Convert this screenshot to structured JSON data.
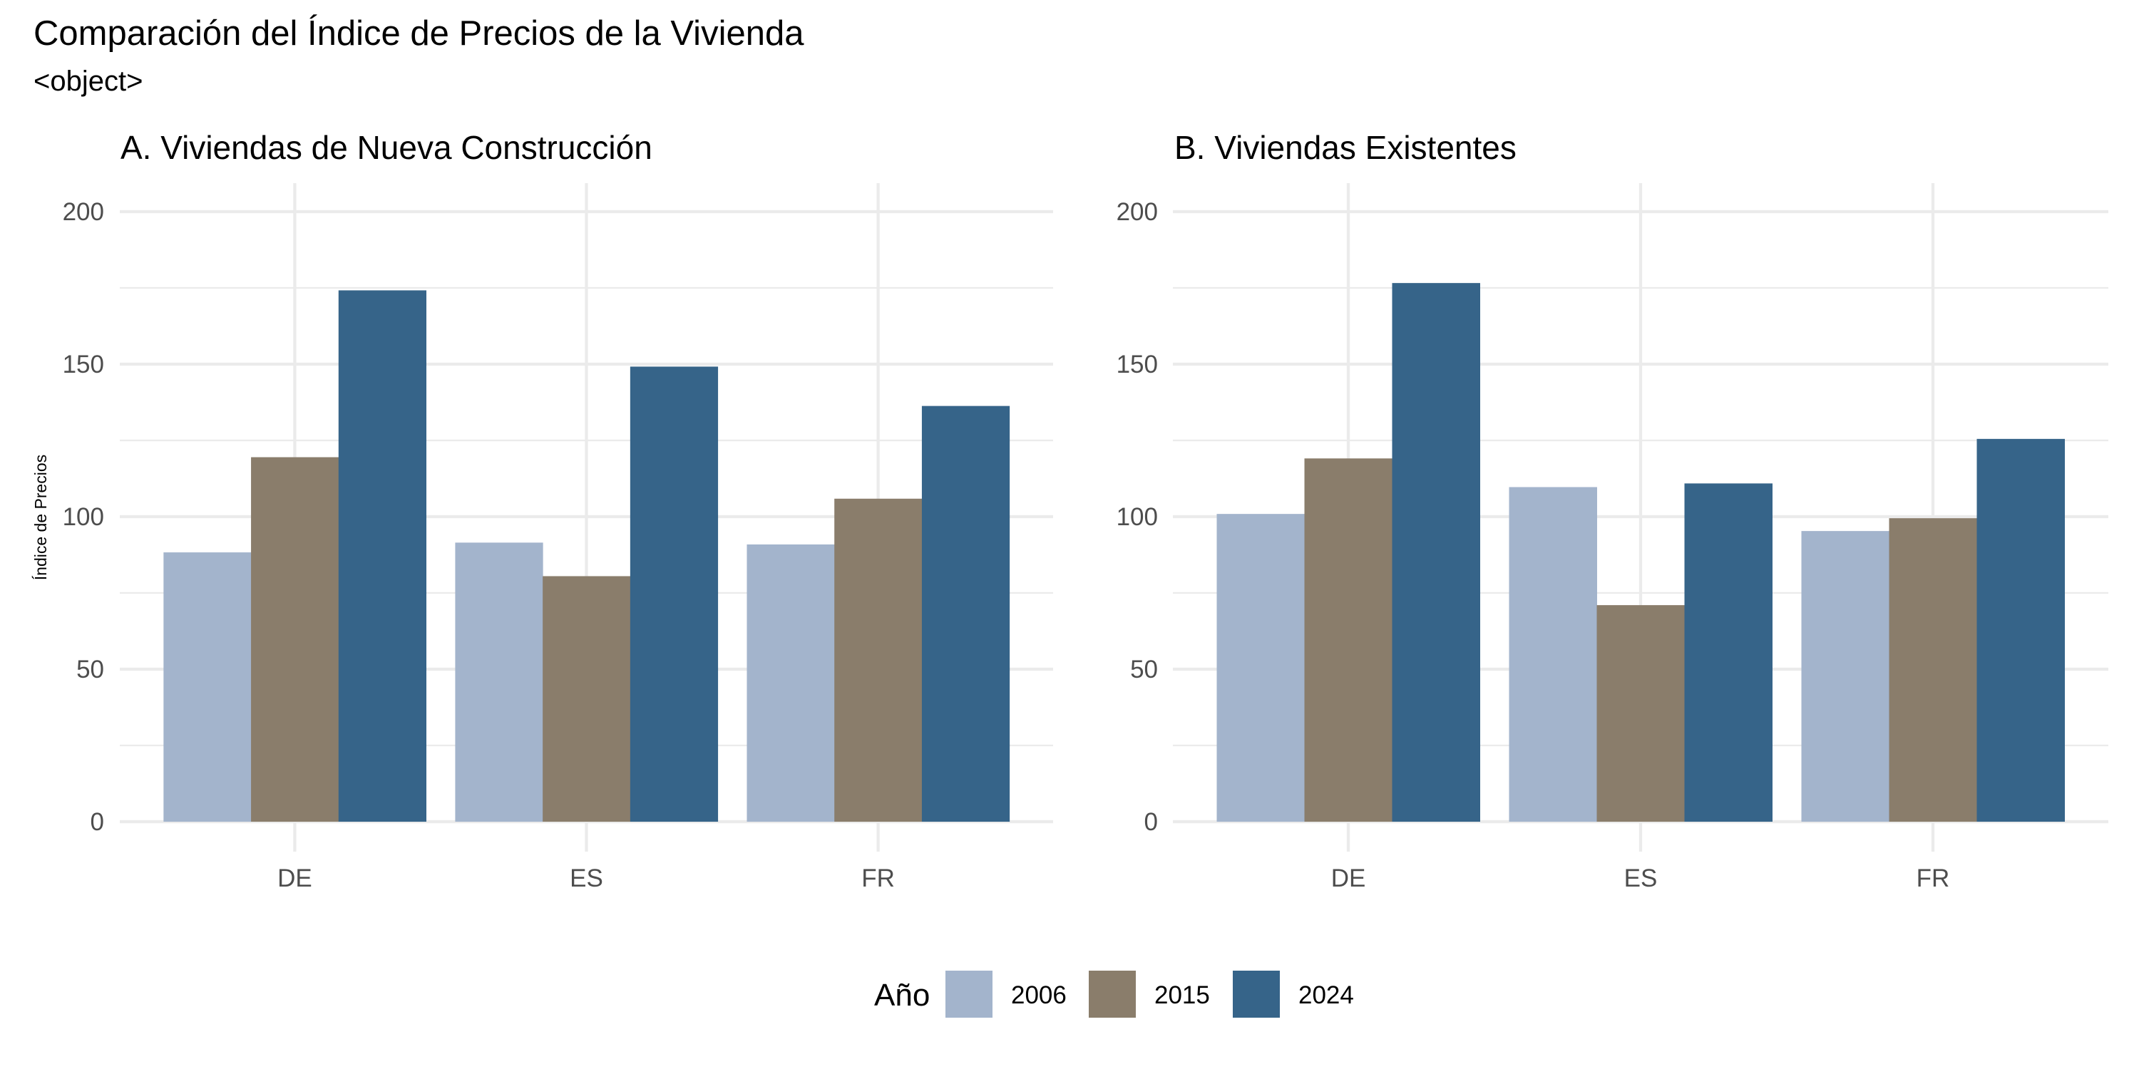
{
  "title": "Comparación del Índice de Precios de la Vivienda",
  "subtitle": "<object>",
  "legend": {
    "title": "Año",
    "items": [
      {
        "label": "2006",
        "color": "#A3B4CC"
      },
      {
        "label": "2015",
        "color": "#8A7D6B"
      },
      {
        "label": "2024",
        "color": "#366489"
      }
    ]
  },
  "chart_data": [
    {
      "type": "bar",
      "title": "A. Viviendas de Nueva Construcción",
      "xlabel": "",
      "ylabel": "Índice de Precios",
      "categories": [
        "DE",
        "ES",
        "FR"
      ],
      "series": [
        {
          "name": "2006",
          "values": [
            88.3,
            91.5,
            90.9
          ]
        },
        {
          "name": "2015",
          "values": [
            119.5,
            80.5,
            105.9
          ]
        },
        {
          "name": "2024",
          "values": [
            174.2,
            149.2,
            136.3
          ]
        }
      ],
      "ylim": [
        0,
        200
      ],
      "yticks": [
        0,
        50,
        100,
        150,
        200
      ],
      "grid": true,
      "legend": "bottom"
    },
    {
      "type": "bar",
      "title": "B. Viviendas Existentes",
      "xlabel": "",
      "ylabel": "",
      "categories": [
        "DE",
        "ES",
        "FR"
      ],
      "series": [
        {
          "name": "2006",
          "values": [
            100.9,
            109.7,
            95.3
          ]
        },
        {
          "name": "2015",
          "values": [
            119.1,
            71.0,
            99.5
          ]
        },
        {
          "name": "2024",
          "values": [
            176.6,
            110.9,
            125.5
          ]
        }
      ],
      "ylim": [
        0,
        200
      ],
      "yticks": [
        0,
        50,
        100,
        150,
        200
      ],
      "grid": true,
      "legend": "bottom"
    }
  ]
}
